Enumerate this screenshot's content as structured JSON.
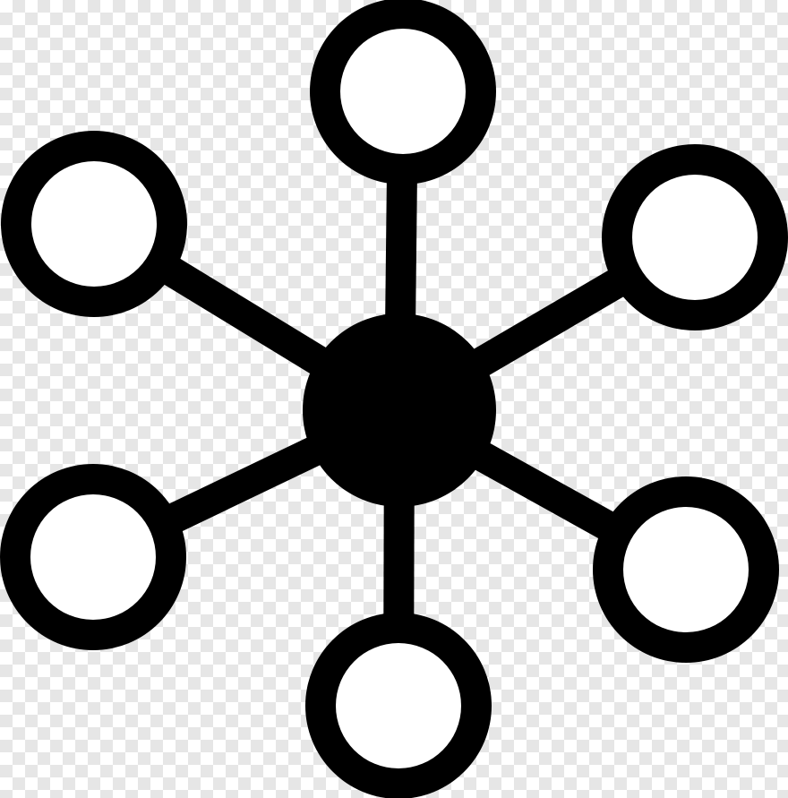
{
  "image": {
    "icon": "network-hub-icon",
    "background": "transparency-checkerboard",
    "colors": {
      "icon_fill": "#000000",
      "node_inner": "#ffffff",
      "checker_light": "#ffffff",
      "checker_dark": "#e6e6e6"
    },
    "hub": {
      "name": "center-hub-node",
      "style": "filled"
    },
    "nodes": [
      {
        "name": "node-top",
        "style": "ring"
      },
      {
        "name": "node-top-right",
        "style": "ring"
      },
      {
        "name": "node-bottom-right",
        "style": "ring"
      },
      {
        "name": "node-bottom",
        "style": "ring"
      },
      {
        "name": "node-bottom-left",
        "style": "ring"
      },
      {
        "name": "node-top-left",
        "style": "ring"
      }
    ]
  }
}
